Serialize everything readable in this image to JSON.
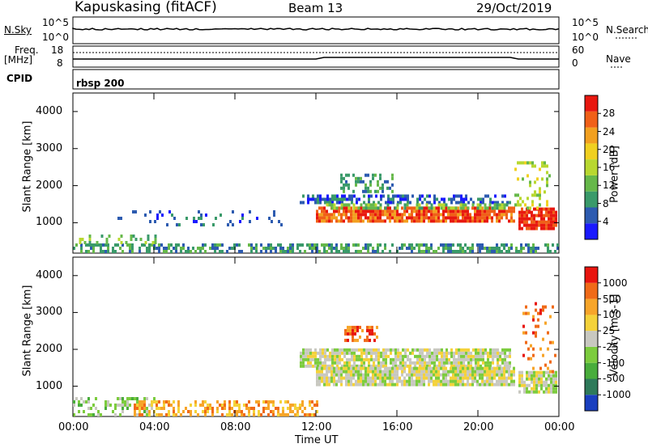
{
  "header": {
    "station": "Kapuskasing (fitACF)",
    "beam": "Beam 13",
    "date": "29/Oct/2019"
  },
  "summary": {
    "nsky_label": "N.Sky",
    "nsky_top": "10^5",
    "nsky_bottom": "10^0",
    "nsearch_label": "N.Search",
    "nsearch_top": "10^5",
    "nsearch_bottom": "10^0",
    "freq_label_1": "Freq.",
    "freq_label_2": "[MHz]",
    "freq_top": "18",
    "freq_bottom": "8",
    "nave_label": "Nave",
    "nave_top": "60",
    "nave_bottom": "0",
    "cpid_label": "CPID",
    "cpid_value": "rbsp 200"
  },
  "chart_data": [
    {
      "type": "heatmap",
      "name": "power",
      "ylabel": "Slant Range [km]",
      "xlabel": "Time UT",
      "x_ticks": [
        "00:00",
        "04:00",
        "08:00",
        "12:00",
        "16:00",
        "20:00",
        "00:00"
      ],
      "x_range_hours": [
        0,
        24
      ],
      "y_ticks": [
        1000,
        2000,
        3000,
        4000
      ],
      "ylim": [
        180,
        4500
      ],
      "colorbar_label": "Power [dB]",
      "colorbar_ticks": [
        "28",
        "24",
        "20",
        "16",
        "12",
        "8",
        "4"
      ],
      "colors": [
        "#1a1aff",
        "#2d5bb0",
        "#3a9a6a",
        "#66b84a",
        "#b8d830",
        "#f0d020",
        "#f2a020",
        "#f06018",
        "#e81810"
      ],
      "regions": [
        {
          "t0": 0.0,
          "t1": 24.0,
          "r0": 180,
          "r1": 420,
          "level": 2,
          "density": 0.55
        },
        {
          "t0": 0.3,
          "t1": 4.2,
          "r0": 420,
          "r1": 650,
          "level": 3,
          "density": 0.35
        },
        {
          "t0": 2.2,
          "t1": 10.5,
          "r0": 900,
          "r1": 1300,
          "level": 1,
          "density": 0.12
        },
        {
          "t0": 11.2,
          "t1": 21.6,
          "r0": 1500,
          "r1": 1750,
          "level": 1,
          "density": 0.55
        },
        {
          "t0": 12.0,
          "t1": 21.8,
          "r0": 1000,
          "r1": 1350,
          "level": 7,
          "density": 0.85
        },
        {
          "t0": 12.5,
          "t1": 21.5,
          "r0": 1350,
          "r1": 1500,
          "level": 3,
          "density": 0.6
        },
        {
          "t0": 13.2,
          "t1": 15.8,
          "r0": 1800,
          "r1": 2250,
          "level": 2,
          "density": 0.45
        },
        {
          "t0": 22.0,
          "t1": 23.9,
          "r0": 800,
          "r1": 1350,
          "level": 8,
          "density": 0.85
        },
        {
          "t0": 21.8,
          "t1": 23.6,
          "r0": 1350,
          "r1": 2600,
          "level": 4,
          "density": 0.25
        }
      ]
    },
    {
      "type": "heatmap",
      "name": "velocity",
      "ylabel": "Slant Range [km]",
      "xlabel": "Time UT",
      "x_ticks": [
        "00:00",
        "04:00",
        "08:00",
        "12:00",
        "16:00",
        "20:00",
        "00:00"
      ],
      "x_range_hours": [
        0,
        24
      ],
      "y_ticks": [
        1000,
        2000,
        3000,
        4000
      ],
      "ylim": [
        180,
        4500
      ],
      "colorbar_label": "Velocity [m s-1]",
      "colorbar_ticks": [
        "1000",
        "500",
        "100",
        "25",
        "-25",
        "-100",
        "-500",
        "-1000"
      ],
      "colors": [
        "#1a3fbf",
        "#2e7a5a",
        "#49ad3c",
        "#7ccc3e",
        "#c8c8c0",
        "#f4d23a",
        "#f7a52a",
        "#f06a18",
        "#e8150f"
      ],
      "regions": [
        {
          "t0": 0.0,
          "t1": 4.0,
          "r0": 180,
          "r1": 700,
          "level": 3,
          "density": 0.35
        },
        {
          "t0": 3.0,
          "t1": 12.0,
          "r0": 180,
          "r1": 550,
          "level": 6,
          "density": 0.45
        },
        {
          "t0": 11.2,
          "t1": 21.6,
          "r0": 1500,
          "r1": 2000,
          "level": 4,
          "density": 0.85
        },
        {
          "t0": 12.0,
          "t1": 21.8,
          "r0": 1000,
          "r1": 1500,
          "level": 4,
          "density": 0.9
        },
        {
          "t0": 13.4,
          "t1": 15.0,
          "r0": 2200,
          "r1": 2600,
          "level": 7,
          "density": 0.5
        },
        {
          "t0": 22.0,
          "t1": 23.9,
          "r0": 800,
          "r1": 1350,
          "level": 4,
          "density": 0.8
        },
        {
          "t0": 22.2,
          "t1": 23.8,
          "r0": 1350,
          "r1": 3200,
          "level": 7,
          "density": 0.15
        }
      ]
    }
  ],
  "colors": {
    "axis": "#000000",
    "background": "#ffffff"
  }
}
